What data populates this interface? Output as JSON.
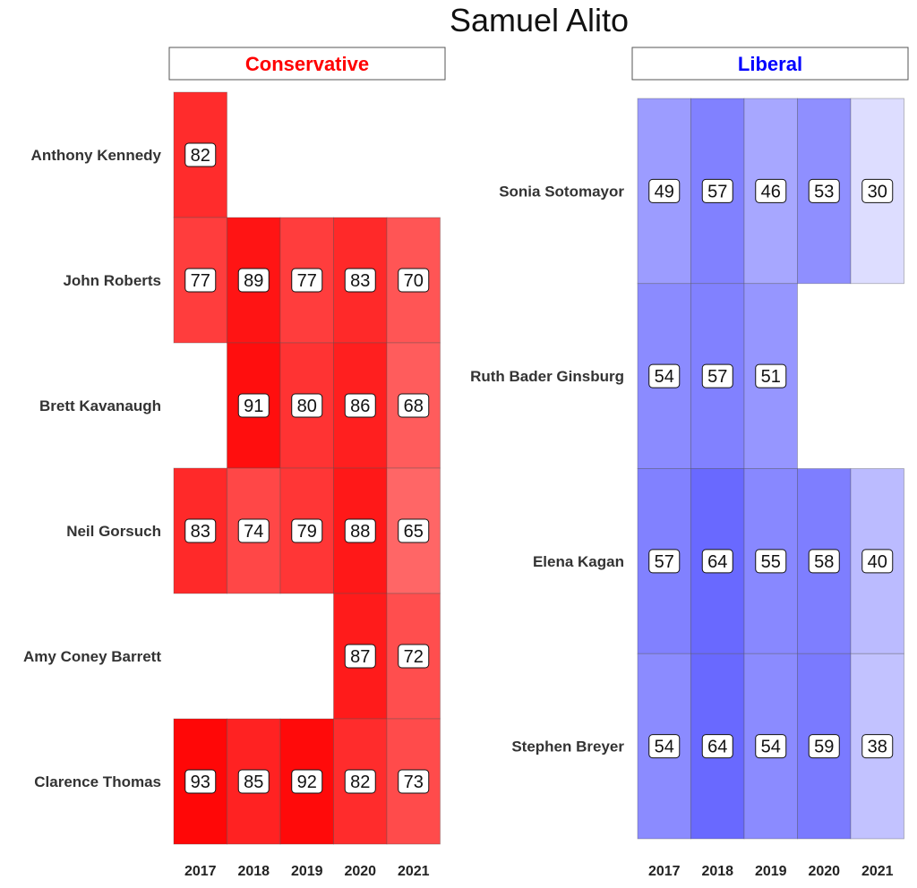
{
  "chart_data": {
    "type": "heatmap",
    "title": "Samuel Alito",
    "xlabel": "",
    "ylabel": "",
    "years": [
      "2017",
      "2018",
      "2019",
      "2020",
      "2021"
    ],
    "value_range": [
      0,
      100
    ],
    "colors": {
      "Conservative": "#ff0000",
      "Liberal": "#0000ff",
      "Conservative_strip_text": "#ff0000",
      "Liberal_strip_text": "#0000ff"
    },
    "panels": [
      {
        "name": "Conservative",
        "rows": [
          {
            "justice": "Anthony Kennedy",
            "values": [
              82,
              null,
              null,
              null,
              null
            ]
          },
          {
            "justice": "John Roberts",
            "values": [
              77,
              89,
              77,
              83,
              70
            ]
          },
          {
            "justice": "Brett Kavanaugh",
            "values": [
              null,
              91,
              80,
              86,
              68
            ]
          },
          {
            "justice": "Neil Gorsuch",
            "values": [
              83,
              74,
              79,
              88,
              65
            ]
          },
          {
            "justice": "Amy Coney Barrett",
            "values": [
              null,
              null,
              null,
              87,
              72
            ]
          },
          {
            "justice": "Clarence Thomas",
            "values": [
              93,
              85,
              92,
              82,
              73
            ]
          }
        ]
      },
      {
        "name": "Liberal",
        "rows": [
          {
            "justice": "Sonia Sotomayor",
            "values": [
              49,
              57,
              46,
              53,
              30
            ]
          },
          {
            "justice": "Ruth Bader Ginsburg",
            "values": [
              54,
              57,
              51,
              null,
              null
            ]
          },
          {
            "justice": "Elena Kagan",
            "values": [
              57,
              64,
              55,
              58,
              40
            ]
          },
          {
            "justice": "Stephen Breyer",
            "values": [
              54,
              64,
              54,
              59,
              38
            ]
          }
        ]
      }
    ]
  }
}
